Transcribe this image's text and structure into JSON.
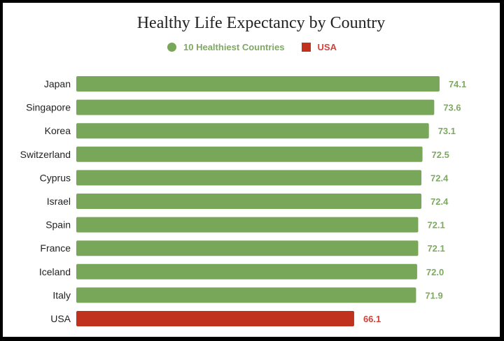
{
  "chart_data": {
    "type": "bar",
    "orientation": "horizontal",
    "title": "Healthy Life Expectancy by Country",
    "xlabel": "",
    "ylabel": "",
    "xlim": [
      40,
      76
    ],
    "grid": false,
    "legend_position": "top",
    "legend": [
      {
        "label": "10 Healthiest Countries",
        "color": "#78a75a",
        "marker": "circle"
      },
      {
        "label": "USA",
        "color": "#c0311e",
        "marker": "square"
      }
    ],
    "categories": [
      "Japan",
      "Singapore",
      "Korea",
      "Switzerland",
      "Cyprus",
      "Israel",
      "Spain",
      "France",
      "Iceland",
      "Italy",
      "USA"
    ],
    "values": [
      74.1,
      73.6,
      73.1,
      72.5,
      72.4,
      72.4,
      72.1,
      72.1,
      72.0,
      71.9,
      66.1
    ],
    "value_labels": [
      "74.1",
      "73.6",
      "73.1",
      "72.5",
      "72.4",
      "72.4",
      "72.1",
      "72.1",
      "72.0",
      "71.9",
      "66.1"
    ],
    "series_membership": [
      "10 Healthiest Countries",
      "10 Healthiest Countries",
      "10 Healthiest Countries",
      "10 Healthiest Countries",
      "10 Healthiest Countries",
      "10 Healthiest Countries",
      "10 Healthiest Countries",
      "10 Healthiest Countries",
      "10 Healthiest Countries",
      "10 Healthiest Countries",
      "USA"
    ]
  },
  "colors": {
    "healthiest": "#78a75a",
    "usa": "#c0311e",
    "healthiest_label": "#7ea962",
    "usa_label": "#d2423a"
  }
}
